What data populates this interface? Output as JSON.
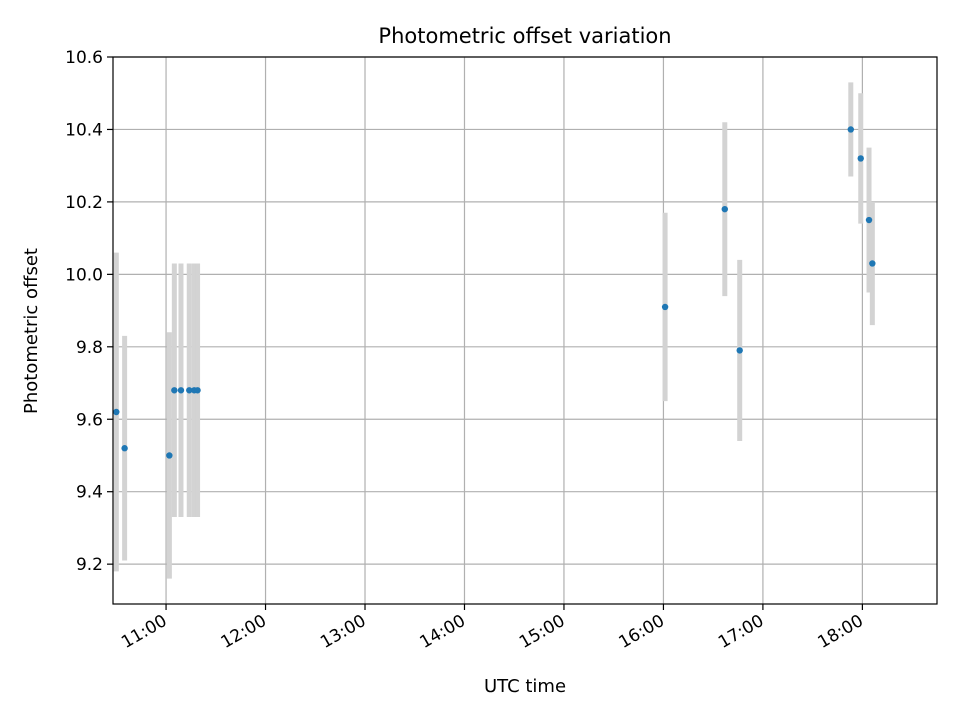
{
  "chart_data": {
    "type": "scatter",
    "title": "Photometric offset variation",
    "xlabel": "UTC time",
    "ylabel": "Photometric offset",
    "grid": true,
    "x_axis": {
      "format": "HH:MM",
      "lim": [
        "10:28",
        "18:45"
      ],
      "ticks": [
        "11:00",
        "12:00",
        "13:00",
        "14:00",
        "15:00",
        "16:00",
        "17:00",
        "18:00"
      ]
    },
    "y_axis": {
      "lim": [
        9.09,
        10.6
      ],
      "ticks": [
        9.2,
        9.4,
        9.6,
        9.8,
        10.0,
        10.2,
        10.4,
        10.6
      ],
      "tick_labels": [
        "9.2",
        "9.4",
        "9.6",
        "9.8",
        "10.0",
        "10.2",
        "10.4",
        "10.6"
      ]
    },
    "colors": {
      "points": "#1f77b4",
      "errorbars": "#d3d3d3",
      "grid": "#b0b0b0"
    },
    "points": [
      {
        "x": "10:30",
        "y": 9.62,
        "yerr": 0.44
      },
      {
        "x": "10:35",
        "y": 9.52,
        "yerr": 0.31
      },
      {
        "x": "11:02",
        "y": 9.5,
        "yerr": 0.34
      },
      {
        "x": "11:05",
        "y": 9.68,
        "yerr": 0.35
      },
      {
        "x": "11:09",
        "y": 9.68,
        "yerr": 0.35
      },
      {
        "x": "11:14",
        "y": 9.68,
        "yerr": 0.35
      },
      {
        "x": "11:17",
        "y": 9.68,
        "yerr": 0.35
      },
      {
        "x": "11:19",
        "y": 9.68,
        "yerr": 0.35
      },
      {
        "x": "16:01",
        "y": 9.91,
        "yerr": 0.26
      },
      {
        "x": "16:37",
        "y": 10.18,
        "yerr": 0.24
      },
      {
        "x": "16:46",
        "y": 9.79,
        "yerr": 0.25
      },
      {
        "x": "17:53",
        "y": 10.4,
        "yerr": 0.13
      },
      {
        "x": "17:59",
        "y": 10.32,
        "yerr": 0.18
      },
      {
        "x": "18:04",
        "y": 10.15,
        "yerr": 0.2
      },
      {
        "x": "18:06",
        "y": 10.03,
        "yerr": 0.17
      }
    ]
  }
}
